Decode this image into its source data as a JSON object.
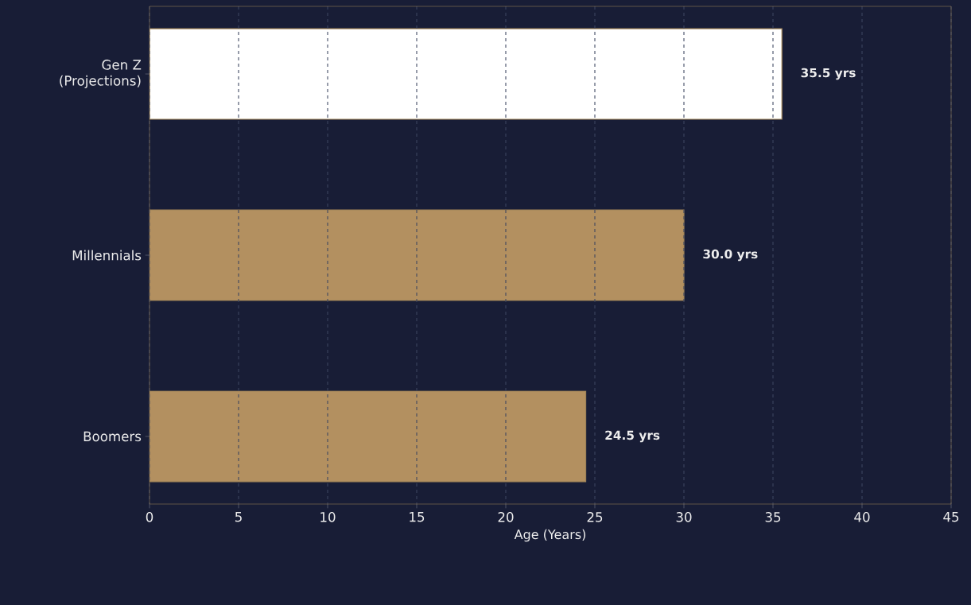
{
  "chart_data": {
    "type": "bar",
    "orientation": "horizontal",
    "categories": [
      "Gen Z (Projections)",
      "Millennials",
      "Boomers"
    ],
    "values": [
      35.5,
      30.0,
      24.5
    ],
    "colors": [
      "#ffffff",
      "#b39060",
      "#b39060"
    ],
    "value_labels": [
      "35.5 yrs",
      "30.0 yrs",
      "24.5 yrs"
    ],
    "xlabel": "Age (Years)",
    "xlim": [
      0,
      45
    ],
    "xticks": [
      0,
      5,
      10,
      15,
      20,
      25,
      30,
      35,
      40,
      45
    ],
    "grid": "x"
  }
}
